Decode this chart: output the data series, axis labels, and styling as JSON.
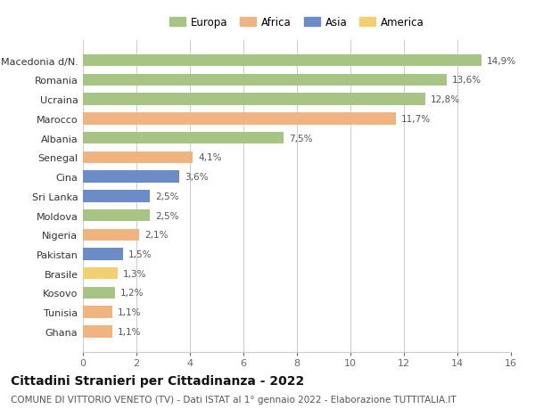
{
  "countries": [
    "Ghana",
    "Tunisia",
    "Kosovo",
    "Brasile",
    "Pakistan",
    "Nigeria",
    "Moldova",
    "Sri Lanka",
    "Cina",
    "Senegal",
    "Albania",
    "Marocco",
    "Ucraina",
    "Romania",
    "Macedonia d/N."
  ],
  "values": [
    1.1,
    1.1,
    1.2,
    1.3,
    1.5,
    2.1,
    2.5,
    2.5,
    3.6,
    4.1,
    7.5,
    11.7,
    12.8,
    13.6,
    14.9
  ],
  "continents": [
    "Africa",
    "Africa",
    "Europa",
    "America",
    "Asia",
    "Africa",
    "Europa",
    "Asia",
    "Asia",
    "Africa",
    "Europa",
    "Africa",
    "Europa",
    "Europa",
    "Europa"
  ],
  "colors": {
    "Europa": "#a8c484",
    "Africa": "#f0b480",
    "Asia": "#6c8cc8",
    "America": "#f0d070"
  },
  "legend_order": [
    "Europa",
    "Africa",
    "Asia",
    "America"
  ],
  "xlim": [
    0,
    16
  ],
  "xticks": [
    0,
    2,
    4,
    6,
    8,
    10,
    12,
    14,
    16
  ],
  "title": "Cittadini Stranieri per Cittadinanza - 2022",
  "subtitle": "COMUNE DI VITTORIO VENETO (TV) - Dati ISTAT al 1° gennaio 2022 - Elaborazione TUTTITALIA.IT",
  "title_fontsize": 10,
  "subtitle_fontsize": 7.5,
  "label_fontsize": 7.5,
  "tick_fontsize": 8,
  "legend_fontsize": 8.5,
  "bg_color": "#ffffff",
  "grid_color": "#cccccc"
}
